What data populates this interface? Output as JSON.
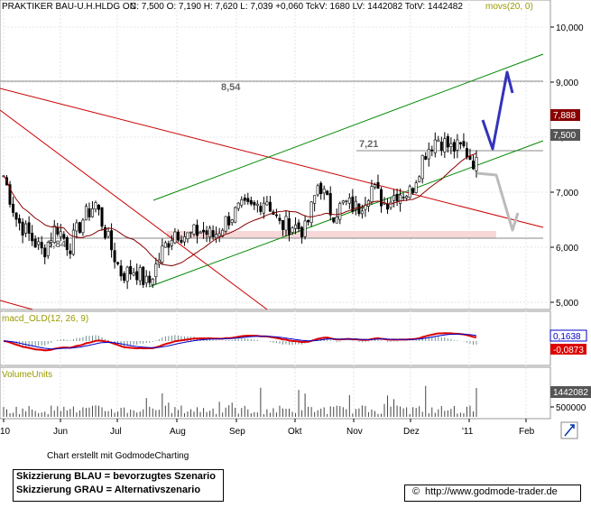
{
  "header": {
    "instrument": "PRAKTIKER BAU-U.H.HLDG ON",
    "quote": "C: 7,500  O: 7,190  H: 7,620  L: 7,039  +0,060  TckV: 1680  LV: 1442082  TotV: 1442482",
    "indicator": "movs(20, 0)",
    "indicator_value": "movs"
  },
  "chart_data": [
    {
      "type": "candlestick",
      "title": "PRAKTIKER BAU-U.H.HLDG ON",
      "ylim": [
        5.0,
        10.0
      ],
      "y_ticks": [
        "10,000",
        "9,000",
        "8,000",
        "7,000",
        "6,000",
        "5,000"
      ],
      "x_ticks": [
        "10",
        "Jun",
        "Jul",
        "Aug",
        "Sep",
        "Okt",
        "Nov",
        "Dez",
        "'11",
        "Feb"
      ],
      "last_close": "7,500",
      "moving_average_value": "7,888",
      "levels": [
        {
          "label": "8,54",
          "value": 8.54
        },
        {
          "label": "7,21",
          "value": 7.21
        },
        {
          "label": "5,84",
          "value": 5.84
        }
      ],
      "scenarios": {
        "blue": "bevorzugtes Szenario",
        "gray": "Alternativszenario"
      },
      "price_path": [
        [
          "2010-05-03",
          7.3
        ],
        [
          "2010-05-10",
          6.5
        ],
        [
          "2010-05-17",
          6.2
        ],
        [
          "2010-05-24",
          5.9
        ],
        [
          "2010-06-01",
          6.4
        ],
        [
          "2010-06-08",
          6.0
        ],
        [
          "2010-06-15",
          6.5
        ],
        [
          "2010-06-22",
          6.8
        ],
        [
          "2010-06-29",
          6.1
        ],
        [
          "2010-07-06",
          5.5
        ],
        [
          "2010-07-13",
          5.6
        ],
        [
          "2010-07-20",
          5.3
        ],
        [
          "2010-07-27",
          5.9
        ],
        [
          "2010-08-03",
          6.3
        ],
        [
          "2010-08-10",
          6.2
        ],
        [
          "2010-08-17",
          6.3
        ],
        [
          "2010-08-24",
          6.2
        ],
        [
          "2010-08-31",
          6.5
        ],
        [
          "2010-09-07",
          6.7
        ],
        [
          "2010-09-14",
          6.7
        ],
        [
          "2010-09-21",
          6.9
        ],
        [
          "2010-09-28",
          6.4
        ],
        [
          "2010-10-05",
          6.4
        ],
        [
          "2010-10-12",
          6.3
        ],
        [
          "2010-10-19",
          7.2
        ],
        [
          "2010-10-26",
          6.6
        ],
        [
          "2010-11-02",
          6.8
        ],
        [
          "2010-11-09",
          6.7
        ],
        [
          "2010-11-16",
          7.1
        ],
        [
          "2010-11-23",
          6.8
        ],
        [
          "2010-11-30",
          7.0
        ],
        [
          "2010-12-07",
          7.0
        ],
        [
          "2010-12-14",
          7.7
        ],
        [
          "2010-12-21",
          8.0
        ],
        [
          "2010-12-28",
          7.8
        ],
        [
          "2011-01-04",
          7.8
        ],
        [
          "2011-01-11",
          7.5
        ]
      ]
    },
    {
      "type": "line",
      "title": "macd_OLD(12, 26, 9)",
      "values": [
        "0,1638",
        "-0,0873"
      ],
      "series": [
        {
          "name": "macd_OLD",
          "color": "#dd0000"
        },
        {
          "name": "signal",
          "color": "#0000cc"
        }
      ]
    },
    {
      "type": "bar",
      "title": "VolumeUnits",
      "y_ticks": [
        "500000"
      ],
      "last_volume": "1442082"
    }
  ],
  "footer": {
    "created_by": "Chart erstellt mit GodmodeCharting",
    "legend_blue": "Skizzierung BLAU = bevorzugtes Szenario",
    "legend_gray": "Skizzierung GRAU = Alternativszenario",
    "copyright_symbol": "©",
    "url": "http://www.godmode-trader.de"
  },
  "colors": {
    "channel": "#008800",
    "downtrend": "#cc0000",
    "blue_scenario": "#3333bb",
    "gray_scenario": "#bbbbbb",
    "support_zone": "#f7d7d7",
    "badge_ma": "#880000",
    "badge_price": "#555555"
  }
}
